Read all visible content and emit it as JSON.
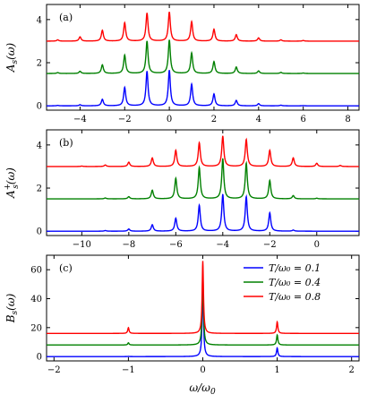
{
  "chart_data": [
    {
      "panel_label": "(a)",
      "type": "line",
      "xlabel": "",
      "ylabel": "A_s(ω)",
      "xlim": [
        -5.5,
        8.5
      ],
      "ylim": [
        -0.2,
        4.7
      ],
      "xticks": [
        -4,
        -2,
        0,
        2,
        4,
        6,
        8
      ],
      "yticks": [
        0,
        2,
        4
      ],
      "xtick_labels": [
        "−4",
        "−2",
        "0",
        "2",
        "4",
        "6",
        "8"
      ],
      "ytick_labels": [
        "0",
        "2",
        "4"
      ],
      "series": [
        {
          "color": "#0000ff",
          "offset": 0,
          "peaks": [
            [
              -5,
              0.02
            ],
            [
              -4,
              0.05
            ],
            [
              -3,
              0.3
            ],
            [
              -2,
              0.85
            ],
            [
              -1,
              1.6
            ],
            [
              0,
              1.65
            ],
            [
              1,
              1.0
            ],
            [
              2,
              0.55
            ],
            [
              3,
              0.25
            ],
            [
              4,
              0.1
            ],
            [
              5,
              0.03
            ],
            [
              6,
              0.01
            ]
          ]
        },
        {
          "color": "#008000",
          "offset": 1.5,
          "peaks": [
            [
              -5,
              0.04
            ],
            [
              -4,
              0.1
            ],
            [
              -3,
              0.4
            ],
            [
              -2,
              0.85
            ],
            [
              -1,
              1.5
            ],
            [
              0,
              1.55
            ],
            [
              1,
              0.95
            ],
            [
              2,
              0.55
            ],
            [
              3,
              0.3
            ],
            [
              4,
              0.12
            ],
            [
              5,
              0.05
            ],
            [
              6,
              0.02
            ]
          ]
        },
        {
          "color": "#ff0000",
          "offset": 3.0,
          "peaks": [
            [
              -5,
              0.06
            ],
            [
              -4,
              0.2
            ],
            [
              -3,
              0.5
            ],
            [
              -2,
              0.85
            ],
            [
              -1,
              1.3
            ],
            [
              0,
              1.35
            ],
            [
              1,
              0.9
            ],
            [
              2,
              0.55
            ],
            [
              3,
              0.3
            ],
            [
              4,
              0.15
            ],
            [
              5,
              0.06
            ],
            [
              6,
              0.03
            ]
          ]
        }
      ]
    },
    {
      "panel_label": "(b)",
      "type": "line",
      "xlabel": "",
      "ylabel": "A_s^+(ω)",
      "xlim": [
        -11.5,
        1.8
      ],
      "ylim": [
        -0.2,
        4.7
      ],
      "xticks": [
        -10,
        -8,
        -6,
        -4,
        -2,
        0
      ],
      "yticks": [
        0,
        2,
        4
      ],
      "xtick_labels": [
        "−10",
        "−8",
        "−6",
        "−4",
        "−2",
        "0"
      ],
      "ytick_labels": [
        "0",
        "2",
        "4"
      ],
      "series": [
        {
          "color": "#0000ff",
          "offset": 0,
          "peaks": [
            [
              -9,
              0.03
            ],
            [
              -8,
              0.1
            ],
            [
              -7,
              0.3
            ],
            [
              -6,
              0.6
            ],
            [
              -5,
              1.2
            ],
            [
              -4,
              1.7
            ],
            [
              -3,
              1.6
            ],
            [
              -2,
              0.85
            ],
            [
              -1,
              0.05
            ]
          ]
        },
        {
          "color": "#008000",
          "offset": 1.5,
          "peaks": [
            [
              -9,
              0.04
            ],
            [
              -8,
              0.1
            ],
            [
              -7,
              0.4
            ],
            [
              -6,
              0.95
            ],
            [
              -5,
              1.45
            ],
            [
              -4,
              1.85
            ],
            [
              -3,
              1.65
            ],
            [
              -2,
              0.85
            ],
            [
              -1,
              0.15
            ],
            [
              0,
              0.03
            ]
          ]
        },
        {
          "color": "#ff0000",
          "offset": 3.0,
          "peaks": [
            [
              -10,
              0.02
            ],
            [
              -9,
              0.07
            ],
            [
              -8,
              0.2
            ],
            [
              -7,
              0.4
            ],
            [
              -6,
              0.75
            ],
            [
              -5,
              1.1
            ],
            [
              -4,
              1.4
            ],
            [
              -3,
              1.25
            ],
            [
              -2,
              0.75
            ],
            [
              -1,
              0.4
            ],
            [
              0,
              0.15
            ],
            [
              1,
              0.05
            ]
          ]
        }
      ]
    },
    {
      "panel_label": "(c)",
      "type": "line",
      "xlabel": "ω/ω_0",
      "ylabel": "B_s(ω)",
      "xlim": [
        -2.1,
        2.1
      ],
      "ylim": [
        -3,
        70
      ],
      "xticks": [
        -2,
        -1,
        0,
        1,
        2
      ],
      "yticks": [
        0,
        20,
        40,
        60
      ],
      "xtick_labels": [
        "−2",
        "−1",
        "0",
        "1",
        "2"
      ],
      "ytick_labels": [
        "0",
        "20",
        "40",
        "60"
      ],
      "legend_position": "top-right",
      "series": [
        {
          "name": "T/ω₀ = 0.1",
          "color": "#0000ff",
          "offset": 0,
          "peaks": [
            [
              0,
              50
            ],
            [
              1,
              6
            ],
            [
              -1,
              0.1
            ]
          ]
        },
        {
          "name": "T/ω₀ = 0.4",
          "color": "#008000",
          "offset": 8,
          "peaks": [
            [
              0,
              50
            ],
            [
              1,
              7
            ],
            [
              -1,
              1.5
            ]
          ]
        },
        {
          "name": "T/ω₀ = 0.8",
          "color": "#ff0000",
          "offset": 16,
          "peaks": [
            [
              0,
              50
            ],
            [
              1,
              8
            ],
            [
              -1,
              4
            ]
          ]
        }
      ]
    }
  ]
}
